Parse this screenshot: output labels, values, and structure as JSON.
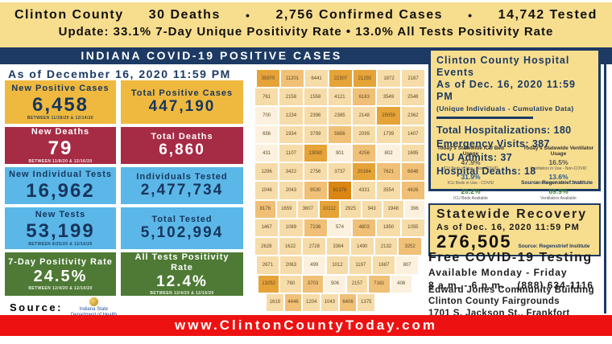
{
  "banner": {
    "county": "Clinton County",
    "deaths": "30 Deaths",
    "bullet": "•",
    "confirmed": "2,756 Confirmed Cases",
    "tested": "14,742 Tested",
    "update_line": "Update: 33.1% 7-Day Unique Positivity Rate • 13.0% All Tests Positivity Rate"
  },
  "header": {
    "title": "INDIANA COVID-19 POSITIVE CASES",
    "as_of": "As of December 16, 2020 11:59 PM"
  },
  "stats": {
    "columns": [
      [
        {
          "label": "New Positive Cases",
          "value": "6,458",
          "note": "BETWEEN 11/28/20 & 12/14/20",
          "style": "gold"
        },
        {
          "label": "New Deaths",
          "value": "79",
          "note": "BETWEEN 11/8/20 & 12/16/20",
          "style": "maroon"
        },
        {
          "label": "New Individual Tests",
          "value": "16,962",
          "note": "",
          "style": "blue"
        },
        {
          "label": "New Tests",
          "value": "53,199",
          "note": "BETWEEN 8/25/20 & 12/16/20",
          "style": "blue"
        },
        {
          "label": "7-Day Positivity Rate",
          "value": "24.5%",
          "note": "BETWEEN 12/4/20 & 12/10/20",
          "style": "green"
        }
      ],
      [
        {
          "label": "Total Positive Cases",
          "value": "447,190",
          "note": "",
          "style": "gold"
        },
        {
          "label": "Total Deaths",
          "value": "6,860",
          "note": "",
          "style": "maroon"
        },
        {
          "label": "Individuals Tested",
          "value": "2,477,734",
          "note": "",
          "style": "blue"
        },
        {
          "label": "Total Tested",
          "value": "5,102,994",
          "note": "",
          "style": "blue"
        },
        {
          "label": "All Tests Positivity Rate",
          "value": "12.4%",
          "note": "BETWEEN 12/4/20 & 12/16/20",
          "style": "green"
        }
      ]
    ]
  },
  "source": {
    "label": "Source:",
    "org_line1": "Indiana State",
    "org_line2": "Department of Health"
  },
  "map": {
    "description": "Indiana county-level positive cases choropleth",
    "shade_colors": [
      "#FBF1DE",
      "#F6DCA9",
      "#F0C077",
      "#E6A338",
      "#DB8512"
    ],
    "rows": [
      [
        [
          35970,
          3
        ],
        [
          11201,
          2
        ],
        [
          6441,
          1
        ],
        [
          22307,
          3
        ],
        [
          21292,
          3
        ],
        [
          1872,
          1
        ],
        [
          2187,
          1
        ]
      ],
      [
        [
          761,
          1
        ],
        [
          2158,
          1
        ],
        [
          1558,
          1
        ],
        [
          4121,
          1
        ],
        [
          6183,
          2
        ],
        [
          3549,
          1
        ],
        [
          2548,
          1
        ]
      ],
      [
        [
          700,
          0
        ],
        [
          1234,
          1
        ],
        [
          2396,
          1
        ],
        [
          2385,
          1
        ],
        [
          2148,
          1
        ],
        [
          25059,
          3
        ],
        [
          2362,
          1
        ]
      ],
      [
        [
          656,
          0
        ],
        [
          1934,
          1
        ],
        [
          3799,
          1
        ],
        [
          5656,
          2
        ],
        [
          2099,
          1
        ],
        [
          1739,
          1
        ],
        [
          1407,
          1
        ]
      ],
      [
        [
          431,
          0
        ],
        [
          1107,
          1
        ],
        [
          13080,
          3
        ],
        [
          901,
          0
        ],
        [
          4256,
          2
        ],
        [
          802,
          0
        ],
        [
          1695,
          1
        ]
      ],
      [
        [
          1296,
          1
        ],
        [
          3422,
          1
        ],
        [
          2756,
          1
        ],
        [
          3737,
          1
        ],
        [
          20184,
          3
        ],
        [
          7621,
          2
        ],
        [
          6848,
          2
        ]
      ],
      [
        [
          1046,
          1
        ],
        [
          2043,
          1
        ],
        [
          9530,
          2
        ],
        [
          61376,
          4
        ],
        [
          4331,
          1
        ],
        [
          3554,
          1
        ],
        [
          4626,
          2
        ]
      ],
      [
        [
          8176,
          2
        ],
        [
          1659,
          1
        ],
        [
          3607,
          1
        ],
        [
          10112,
          3
        ],
        [
          2925,
          1
        ],
        [
          943,
          1
        ],
        [
          1948,
          1
        ],
        [
          396,
          0
        ]
      ],
      [
        [
          1467,
          1
        ],
        [
          1089,
          1
        ],
        [
          7236,
          2
        ],
        [
          574,
          0
        ],
        [
          4803,
          2
        ],
        [
          1850,
          1
        ],
        [
          1055,
          1
        ]
      ],
      [
        [
          2628,
          1
        ],
        [
          1622,
          1
        ],
        [
          2728,
          1
        ],
        [
          3364,
          1
        ],
        [
          1490,
          1
        ],
        [
          2132,
          1
        ],
        [
          3252,
          2
        ]
      ],
      [
        [
          2671,
          1
        ],
        [
          2063,
          1
        ],
        [
          499,
          0
        ],
        [
          1012,
          1
        ],
        [
          1197,
          1
        ],
        [
          1687,
          1
        ],
        [
          807,
          0
        ]
      ],
      [
        [
          13252,
          3
        ],
        [
          760,
          1
        ],
        [
          3703,
          2
        ],
        [
          506,
          0
        ],
        [
          2157,
          1
        ],
        [
          7161,
          2
        ],
        [
          406,
          0
        ]
      ],
      [
        [
          1619,
          1
        ],
        [
          4446,
          2
        ],
        [
          1204,
          1
        ],
        [
          1043,
          1
        ],
        [
          6406,
          2
        ],
        [
          1375,
          1
        ]
      ]
    ]
  },
  "hospital": {
    "title": "Clinton County Hospital Events",
    "as_of": "As of Dec. 16, 2020 11:59 PM",
    "subtitle": "(Unique Individuals - Cumulative Data)",
    "metrics": [
      {
        "label": "Total Hospitalizations",
        "value": "180"
      },
      {
        "label": "Emergency Visits",
        "value": "387"
      },
      {
        "label": "ICU Admits",
        "value": "37"
      },
      {
        "label": "Hospital Deaths",
        "value": "18"
      }
    ],
    "source": "Source: Regenstrief Institute"
  },
  "icu": {
    "columns": [
      {
        "title": "Today's Statewide ICU Bed Usage",
        "stats": [
          {
            "pct": "47.9%",
            "label": "ICU Beds in Use - Non-COVID",
            "color": "#595959"
          },
          {
            "pct": "31.9%",
            "label": "ICU Beds in Use - COVID",
            "color": "#1F5C99"
          },
          {
            "pct": "20.2%",
            "label": "ICU Beds Available",
            "color": "#3C8031"
          }
        ]
      },
      {
        "title": "Today's Statewide Ventilator Usage",
        "stats": [
          {
            "pct": "16.5%",
            "label": "Ventilators in Use - Non-COVID",
            "color": "#595959"
          },
          {
            "pct": "13.6%",
            "label": "Ventilators in Use - COVID",
            "color": "#1F5C99"
          },
          {
            "pct": "69.9%",
            "label": "Ventilators Available",
            "color": "#3C8031"
          }
        ]
      }
    ]
  },
  "recovery": {
    "title": "Statewide Recovery",
    "as_of": "As of Dec. 16, 2020 11:59 PM",
    "value": "276,505",
    "source": "Source: Regenstrief Institute"
  },
  "testing": {
    "title": "Free COVID-19 Testing",
    "availability": "Available Monday - Friday",
    "hours": "8 a.m. - 6 p.m.",
    "phone": "(888) 634-1116"
  },
  "address": {
    "lines": [
      "Edward Jones Community Building",
      "Clinton County Fairgrounds",
      "1701 S. Jackson St., Frankfort"
    ]
  },
  "footer": {
    "url": "www.ClintonCountyToday.com"
  },
  "colors": {
    "navy": "#1C3A63",
    "banner_yellow": "#F7DD8E",
    "gold_box": "#EFB93F",
    "maroon_box": "#A62B45",
    "blue_box": "#5BB7E8",
    "green_box": "#4E7A35",
    "footer_red": "#EE1111"
  },
  "chart_data": [
    {
      "type": "table",
      "title": "Indiana COVID-19 Positive Cases — As of December 16, 2020 11:59 PM",
      "columns": [
        "Metric",
        "Value",
        "Period"
      ],
      "rows": [
        [
          "New Positive Cases",
          "6,458",
          "BETWEEN 11/28/20 & 12/14/20"
        ],
        [
          "Total Positive Cases",
          "447,190",
          ""
        ],
        [
          "New Deaths",
          "79",
          "BETWEEN 11/8/20 & 12/16/20"
        ],
        [
          "Total Deaths",
          "6,860",
          ""
        ],
        [
          "New Individual Tests",
          "16,962",
          ""
        ],
        [
          "Individuals Tested",
          "2,477,734",
          ""
        ],
        [
          "New Tests",
          "53,199",
          "BETWEEN 8/25/20 & 12/16/20"
        ],
        [
          "Total Tested",
          "5,102,994",
          ""
        ],
        [
          "7-Day Positivity Rate",
          "24.5%",
          "BETWEEN 12/4/20 & 12/10/20"
        ],
        [
          "All Tests Positivity Rate",
          "12.4%",
          "BETWEEN 12/4/20 & 12/16/20"
        ]
      ]
    },
    {
      "type": "table",
      "title": "Clinton County summary banner",
      "columns": [
        "Metric",
        "Value"
      ],
      "rows": [
        [
          "Deaths",
          30
        ],
        [
          "Confirmed Cases",
          2756
        ],
        [
          "Tested",
          14742
        ],
        [
          "7-Day Unique Positivity Rate",
          "33.1%"
        ],
        [
          "All Tests Positivity Rate",
          "13.0%"
        ]
      ]
    },
    {
      "type": "table",
      "title": "Clinton County Hospital Events (Unique Individuals - Cumulative Data) As of Dec. 16, 2020 11:59 PM",
      "columns": [
        "Metric",
        "Value"
      ],
      "rows": [
        [
          "Total Hospitalizations",
          180
        ],
        [
          "Emergency Visits",
          387
        ],
        [
          "ICU Admits",
          37
        ],
        [
          "Hospital Deaths",
          18
        ],
        [
          "Statewide Recovery",
          276505
        ]
      ]
    },
    {
      "type": "table",
      "title": "Today's Statewide ICU Bed / Ventilator Usage",
      "columns": [
        "Status",
        "ICU Beds",
        "Ventilators"
      ],
      "rows": [
        [
          "In Use - Non-COVID",
          "47.9%",
          "16.5%"
        ],
        [
          "In Use - COVID",
          "31.9%",
          "13.6%"
        ],
        [
          "Available",
          "20.2%",
          "69.9%"
        ]
      ]
    },
    {
      "type": "heatmap",
      "title": "Indiana county positive cases (choropleth map values, read top-to-bottom, left-to-right)",
      "values": [
        [
          35970,
          11201,
          6441,
          22307,
          21292,
          1872,
          2187
        ],
        [
          761,
          2158,
          1558,
          4121,
          6183,
          3549,
          2548
        ],
        [
          700,
          1234,
          2396,
          2385,
          2148,
          25059,
          2362
        ],
        [
          656,
          1934,
          3799,
          5656,
          2099,
          1739,
          1407
        ],
        [
          431,
          1107,
          13080,
          901,
          4256,
          802,
          1695
        ],
        [
          1296,
          3422,
          2756,
          3737,
          20184,
          7621,
          6848
        ],
        [
          1046,
          2043,
          9530,
          61376,
          4331,
          3554,
          4626
        ],
        [
          8176,
          1659,
          3607,
          10112,
          2925,
          943,
          1948,
          396
        ],
        [
          1467,
          1089,
          7236,
          574,
          4803,
          1850,
          1055
        ],
        [
          2628,
          1622,
          2728,
          3364,
          1490,
          2132,
          3252
        ],
        [
          2671,
          2063,
          499,
          1012,
          1197,
          1687,
          807
        ],
        [
          13252,
          760,
          3703,
          506,
          2157,
          7161,
          406
        ],
        [
          1619,
          4446,
          1204,
          1043,
          6406,
          1375
        ]
      ]
    }
  ]
}
